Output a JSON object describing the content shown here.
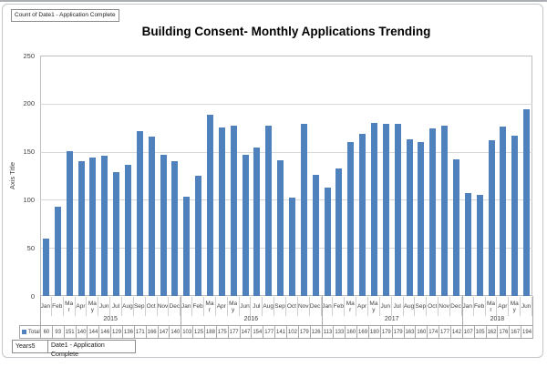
{
  "window": {
    "field_button_top": "Count of Date1 - Application Complete",
    "field_button_years": "Years5",
    "field_button_date": "Date1 - Application Complete"
  },
  "chart": {
    "title": "Building Consent- Monthly Applications Trending",
    "y_axis_title": "Axis Title",
    "legend_label": "Total",
    "months_display": [
      "Jan",
      "Feb",
      "Ma\nr",
      "Apr",
      "Ma\ny",
      "Jun",
      "Jul",
      "Aug",
      "Sep",
      "Oct",
      "Nov",
      "Dec"
    ],
    "colors": {
      "bar": "#4F81BD",
      "gridline": "#D8D8D8",
      "plot_border": "#BFBFBF",
      "table_border": "#A6A6A6",
      "year_boundary": "#ABABAB",
      "text": "#3F3F3F"
    }
  },
  "chart_data": {
    "type": "bar",
    "title": "Building Consent- Monthly Applications Trending",
    "xlabel": "",
    "ylabel": "Axis Title",
    "ylim": [
      0,
      250
    ],
    "y_ticks": [
      0,
      50,
      100,
      150,
      200,
      250
    ],
    "grid": true,
    "series_name": "Total",
    "legend_position": "bottom-left-table",
    "groups": [
      {
        "year": "2015",
        "months": [
          "Jan",
          "Feb",
          "Mar",
          "Apr",
          "May",
          "Jun",
          "Jul",
          "Aug",
          "Sep",
          "Oct",
          "Nov",
          "Dec"
        ],
        "values": [
          60,
          93,
          151,
          140,
          144,
          146,
          129,
          136,
          171,
          166,
          147,
          140
        ]
      },
      {
        "year": "2016",
        "months": [
          "Jan",
          "Feb",
          "Mar",
          "Apr",
          "May",
          "Jun",
          "Jul",
          "Aug",
          "Sep",
          "Oct",
          "Nov",
          "Dec"
        ],
        "values": [
          103,
          125,
          188,
          175,
          177,
          147,
          154,
          177,
          141,
          102,
          179,
          126
        ]
      },
      {
        "year": "2017",
        "months": [
          "Jan",
          "Feb",
          "Mar",
          "Apr",
          "May",
          "Jun",
          "Jul",
          "Aug",
          "Sep",
          "Oct",
          "Nov",
          "Dec"
        ],
        "values": [
          113,
          133,
          160,
          169,
          180,
          179,
          179,
          163,
          160,
          174,
          177,
          142
        ]
      },
      {
        "year": "2018",
        "months": [
          "Jan",
          "Feb",
          "Mar",
          "Apr",
          "May",
          "Jun"
        ],
        "values": [
          107,
          105,
          162,
          176,
          167,
          194
        ]
      }
    ]
  }
}
